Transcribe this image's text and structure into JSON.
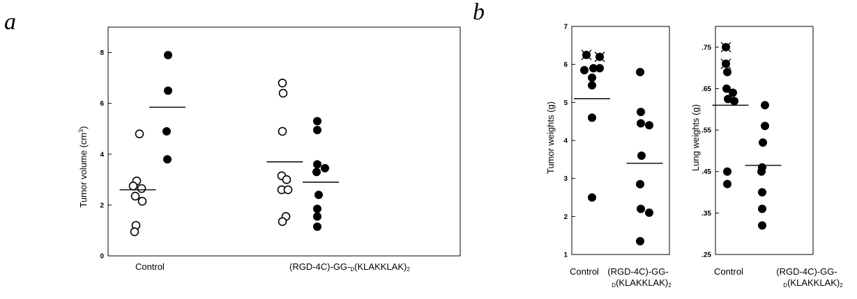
{
  "panels": {
    "a": "a",
    "b": "b"
  },
  "chart_data": [
    {
      "type": "scatter",
      "ylabel_main": "Tumor volume (cm",
      "ylabel_sup": "3",
      "ylabel_end": ")",
      "ylim": [
        0,
        9
      ],
      "yticks": [
        0,
        2,
        4,
        6,
        8
      ],
      "category_labels": [
        {
          "parts": [
            {
              "t": "Control"
            }
          ]
        },
        {
          "parts": [
            {
              "t": "(RGD-4C)-GG-"
            },
            {
              "t": "D",
              "sub": true
            },
            {
              "t": "(KLAKKLAK)"
            },
            {
              "t": "2",
              "sub": true
            }
          ]
        }
      ],
      "groups": [
        {
          "category": 0,
          "fill": "open",
          "values": [
            4.8,
            2.95,
            2.75,
            2.65,
            2.35,
            2.15,
            1.2,
            0.95
          ],
          "mean": 2.6
        },
        {
          "category": 0,
          "fill": "filled",
          "values": [
            7.9,
            6.5,
            4.9,
            3.8
          ],
          "mean": 5.85
        },
        {
          "category": 1,
          "fill": "open",
          "values": [
            6.8,
            6.4,
            4.9,
            3.15,
            3.0,
            2.6,
            2.6,
            1.55,
            1.35
          ],
          "mean": 3.7
        },
        {
          "category": 1,
          "fill": "filled",
          "values": [
            5.3,
            4.95,
            3.6,
            3.45,
            3.3,
            2.4,
            1.85,
            1.55,
            1.15
          ],
          "mean": 2.9
        }
      ]
    },
    {
      "type": "scatter",
      "ylabel": "Tumor weights (g)",
      "ylim": [
        1,
        7
      ],
      "yticks": [
        1,
        2,
        3,
        4,
        5,
        6,
        7
      ],
      "category_labels": [
        {
          "parts": [
            {
              "t": "Control"
            }
          ]
        },
        {
          "parts": [
            {
              "t": "(RGD-4C)-GG-"
            }
          ]
        },
        {
          "parts": [
            {
              "t": "D",
              "sub": true
            },
            {
              "t": "(KLAKKLAK)"
            },
            {
              "t": "2",
              "sub": true
            }
          ]
        }
      ],
      "groups": [
        {
          "category": 0,
          "fill": "filled",
          "values": [
            5.85,
            5.9,
            5.9,
            5.65,
            5.45,
            4.6,
            2.5
          ],
          "mean": 5.1,
          "crossed": [
            6.25,
            6.2
          ]
        },
        {
          "category": 1,
          "fill": "filled",
          "values": [
            5.8,
            4.75,
            4.45,
            4.4,
            3.6,
            2.85,
            2.2,
            2.1,
            1.35
          ],
          "mean": 3.4
        }
      ]
    },
    {
      "type": "scatter",
      "ylabel": "Lung weights (g)",
      "ylim": [
        0.25,
        0.8
      ],
      "yticks": [
        0.25,
        0.35,
        0.45,
        0.55,
        0.65,
        0.75
      ],
      "ytick_labels": [
        ".25",
        ".35",
        ".45",
        ".55",
        ".65",
        ".75"
      ],
      "category_labels": [
        {
          "parts": [
            {
              "t": "Control"
            }
          ]
        },
        {
          "parts": [
            {
              "t": "(RGD-4C)-GG-"
            }
          ]
        },
        {
          "parts": [
            {
              "t": "D",
              "sub": true
            },
            {
              "t": "(KLAKKLAK)"
            },
            {
              "t": "2",
              "sub": true
            }
          ]
        }
      ],
      "groups": [
        {
          "category": 0,
          "fill": "filled",
          "values": [
            0.69,
            0.65,
            0.64,
            0.625,
            0.62,
            0.45,
            0.42
          ],
          "mean": 0.61,
          "crossed": [
            0.75,
            0.71
          ]
        },
        {
          "category": 1,
          "fill": "filled",
          "values": [
            0.61,
            0.56,
            0.52,
            0.46,
            0.45,
            0.4,
            0.36,
            0.32
          ],
          "mean": 0.465
        }
      ]
    }
  ]
}
